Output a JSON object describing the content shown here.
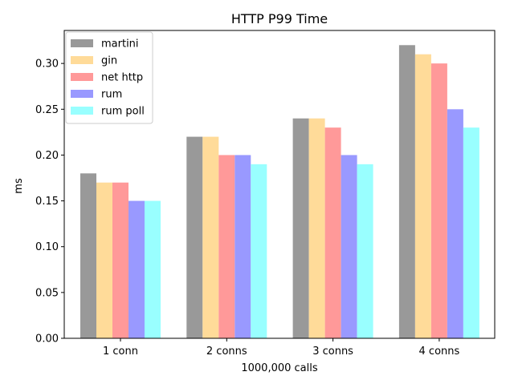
{
  "chart_data": {
    "type": "bar",
    "title": "HTTP P99 Time",
    "xlabel": "1000,000 calls",
    "ylabel": "ms",
    "categories": [
      "1 conn",
      "2 conns",
      "3 conns",
      "4 conns"
    ],
    "ylim": [
      0,
      0.336
    ],
    "yticks": [
      "0.00",
      "0.05",
      "0.10",
      "0.15",
      "0.20",
      "0.25",
      "0.30"
    ],
    "legend_position": "top-left",
    "grid": false,
    "series": [
      {
        "name": "martini",
        "color": "#999999",
        "values": [
          0.18,
          0.22,
          0.24,
          0.32
        ]
      },
      {
        "name": "gin",
        "color": "#ffdb99",
        "values": [
          0.17,
          0.22,
          0.24,
          0.31
        ]
      },
      {
        "name": "net http",
        "color": "#ff9999",
        "values": [
          0.17,
          0.2,
          0.23,
          0.3
        ]
      },
      {
        "name": "rum",
        "color": "#9999ff",
        "values": [
          0.15,
          0.2,
          0.2,
          0.25
        ]
      },
      {
        "name": "rum poll",
        "color": "#99ffff",
        "values": [
          0.15,
          0.19,
          0.19,
          0.23
        ]
      }
    ]
  }
}
